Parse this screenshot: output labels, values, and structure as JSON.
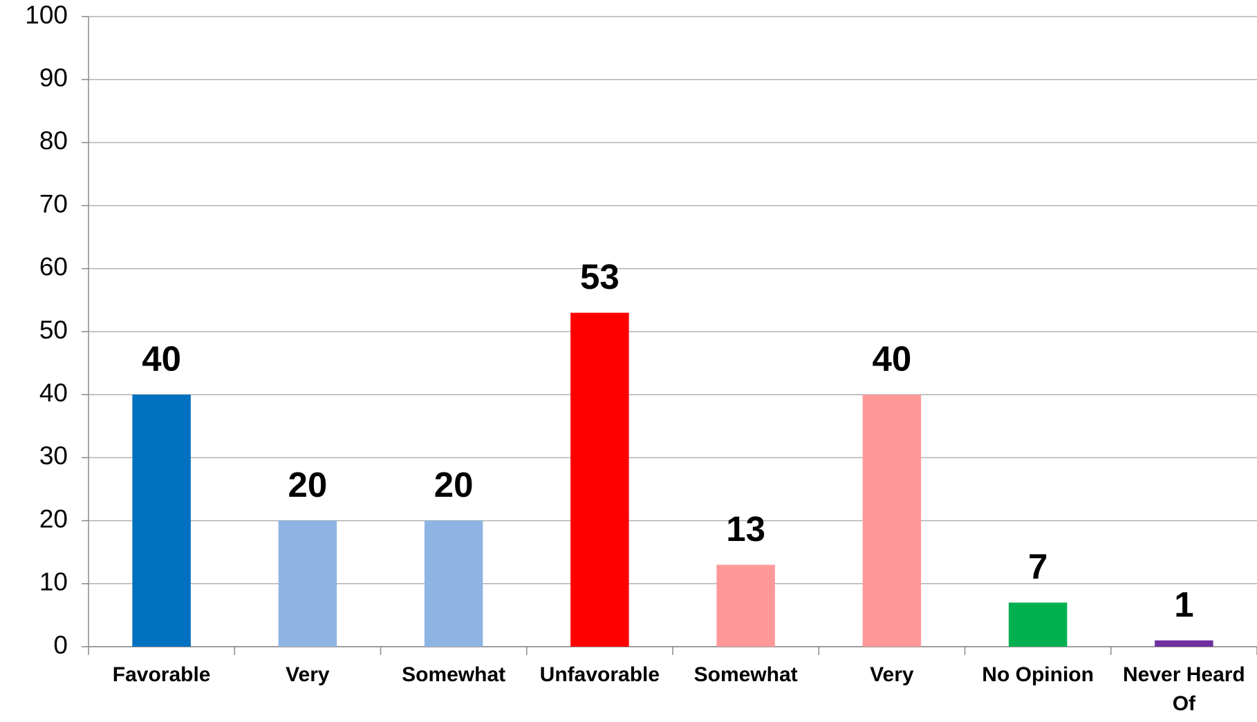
{
  "chart_data": {
    "type": "bar",
    "categories": [
      "Favorable",
      "Very",
      "Somewhat",
      "Unfavorable",
      "Somewhat",
      "Very",
      "No Opinion",
      "Never Heard Of"
    ],
    "values": [
      40,
      20,
      20,
      53,
      13,
      40,
      7,
      1
    ],
    "colors": [
      "#0070c0",
      "#8eb4e3",
      "#8eb4e3",
      "#ff0000",
      "#ff9999",
      "#ff9999",
      "#00b050",
      "#7030a0"
    ],
    "ylim": [
      0,
      100
    ],
    "yticks": [
      0,
      10,
      20,
      30,
      40,
      50,
      60,
      70,
      80,
      90,
      100
    ],
    "grid": true
  }
}
